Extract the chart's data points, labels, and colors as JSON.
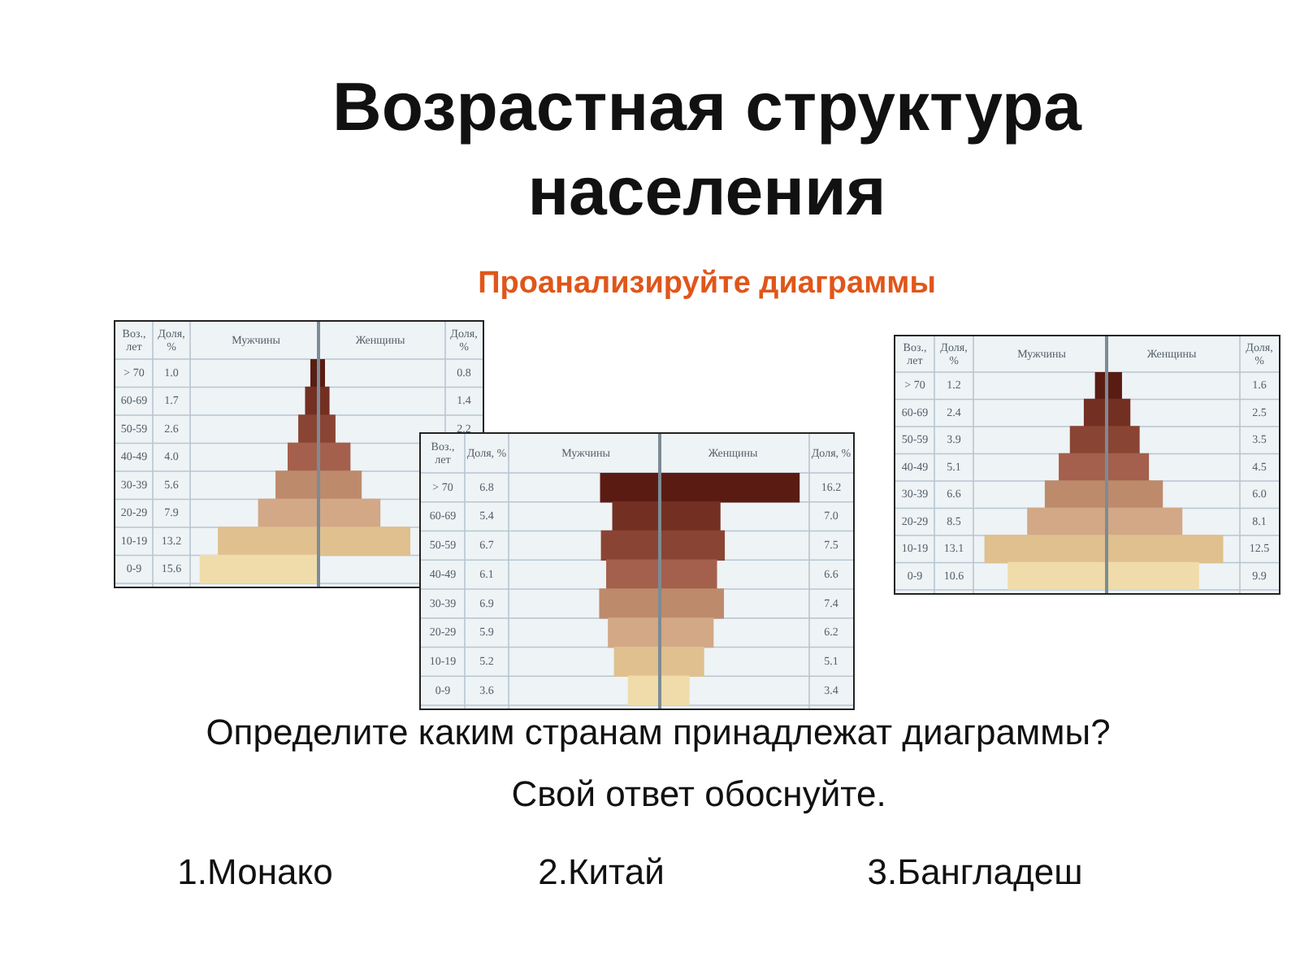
{
  "chart_data": [
    {
      "type": "other",
      "title": "Возрастная структура населения",
      "subtitle": "Проанализируйте диаграммы"
    },
    {
      "type": "bar",
      "orientation": "horizontal",
      "ylabel": "Воз., лет",
      "xlabel": "Доля, %",
      "xlim": [
        16.5,
        0
      ],
      "tick_labels": "y",
      "categories": [
        "> 70",
        "60-69",
        "50-59",
        "40-49",
        "30-39",
        "20-29",
        "10-19",
        "0-9"
      ],
      "series": [
        {
          "name": "Мужчины",
          "colors": [
            "#5a1c12",
            "#733022",
            "#8a4434",
            "#a4604c",
            "#be8a6c",
            "#d2a886",
            "#dfc08e",
            "#efdcaa"
          ],
          "values": [
            1.0,
            1.7,
            2.6,
            4.0,
            5.6,
            7.9,
            13.2,
            15.6
          ],
          "value_labels": [
            "1.0",
            "1.7",
            "2.6",
            "4.0",
            "5.6",
            "7.9",
            "13.2",
            "15.6"
          ]
        }
      ]
    },
    {
      "type": "bar",
      "orientation": "horizontal",
      "xlabel": "Доля, %",
      "xlim": [
        0,
        16.5
      ],
      "tick_labels": false,
      "categories": [
        null,
        null,
        null,
        null,
        null,
        null,
        null,
        null
      ],
      "series": [
        {
          "name": "Женщины",
          "colors": [
            "#5a1c12",
            "#733022",
            "#8a4434",
            "#a4604c",
            "#be8a6c",
            "#d2a886",
            "#dfc08e",
            "#efdcaa"
          ],
          "values": [
            0.8,
            1.4,
            2.2,
            4.2,
            5.7,
            8.2,
            12.2,
            null
          ],
          "value_labels": [
            "0.8",
            "1.4",
            "2.2",
            null,
            null,
            null,
            null,
            null
          ]
        }
      ]
    },
    {
      "type": "bar",
      "orientation": "horizontal",
      "ylabel": "Воз., лет",
      "xlabel": "Доля, %",
      "xlim": [
        17,
        0
      ],
      "tick_labels": "y",
      "categories": [
        "> 70",
        "60-69",
        "50-59",
        "40-49",
        "30-39",
        "20-29",
        "10-19",
        "0-9"
      ],
      "series": [
        {
          "name": "Мужчины",
          "colors": [
            "#5a1c12",
            "#733022",
            "#8a4434",
            "#a4604c",
            "#be8a6c",
            "#d2a886",
            "#dfc08e",
            "#efdcaa"
          ],
          "values": [
            6.8,
            5.4,
            6.7,
            6.1,
            6.9,
            5.9,
            5.2,
            3.6
          ],
          "value_labels": [
            "6.8",
            "5.4",
            "6.7",
            "6.1",
            "6.9",
            "5.9",
            "5.2",
            "3.6"
          ]
        }
      ]
    },
    {
      "type": "bar",
      "orientation": "horizontal",
      "xlabel": "Доля, %",
      "xlim": [
        0,
        17
      ],
      "tick_labels": false,
      "categories": [
        null,
        null,
        null,
        null,
        null,
        null,
        null,
        null
      ],
      "series": [
        {
          "name": "Женщины",
          "colors": [
            "#5a1c12",
            "#733022",
            "#8a4434",
            "#a4604c",
            "#be8a6c",
            "#d2a886",
            "#dfc08e",
            "#efdcaa"
          ],
          "values": [
            16.2,
            7.0,
            7.5,
            6.6,
            7.4,
            6.2,
            5.1,
            3.4
          ],
          "value_labels": [
            "16.2",
            "7.0",
            "7.5",
            "6.6",
            "7.4",
            "6.2",
            "5.1",
            "3.4"
          ]
        }
      ]
    },
    {
      "type": "bar",
      "orientation": "horizontal",
      "ylabel": "Воз., лет",
      "xlabel": "Доля, %",
      "xlim": [
        14,
        0
      ],
      "tick_labels": "y",
      "categories": [
        "> 70",
        "60-69",
        "50-59",
        "40-49",
        "30-39",
        "20-29",
        "10-19",
        "0-9"
      ],
      "series": [
        {
          "name": "Мужчины",
          "colors": [
            "#5a1c12",
            "#733022",
            "#8a4434",
            "#a4604c",
            "#be8a6c",
            "#d2a886",
            "#dfc08e",
            "#efdcaa"
          ],
          "values": [
            1.2,
            2.4,
            3.9,
            5.1,
            6.6,
            8.5,
            13.1,
            10.6
          ],
          "value_labels": [
            "1.2",
            "2.4",
            "3.9",
            "5.1",
            "6.6",
            "8.5",
            "13.1",
            "10.6"
          ]
        }
      ]
    },
    {
      "type": "bar",
      "orientation": "horizontal",
      "xlabel": "Доля, %",
      "xlim": [
        0,
        14
      ],
      "tick_labels": false,
      "categories": [
        null,
        null,
        null,
        null,
        null,
        null,
        null,
        null
      ],
      "series": [
        {
          "name": "Женщины",
          "colors": [
            "#5a1c12",
            "#733022",
            "#8a4434",
            "#a4604c",
            "#be8a6c",
            "#d2a886",
            "#dfc08e",
            "#efdcaa"
          ],
          "values": [
            1.6,
            2.5,
            3.5,
            4.5,
            6.0,
            8.1,
            12.5,
            9.9
          ],
          "value_labels": [
            "1.6",
            "2.5",
            "3.5",
            "4.5",
            "6.0",
            "8.1",
            "12.5",
            "9.9"
          ]
        }
      ]
    },
    {
      "type": "other",
      "annotations": [
        "Определите каким странам принадлежат диаграммы?",
        "Свой ответ обоснуйте.",
        "1.Монако",
        "2.Китай",
        "3.Бангладеш"
      ]
    }
  ]
}
